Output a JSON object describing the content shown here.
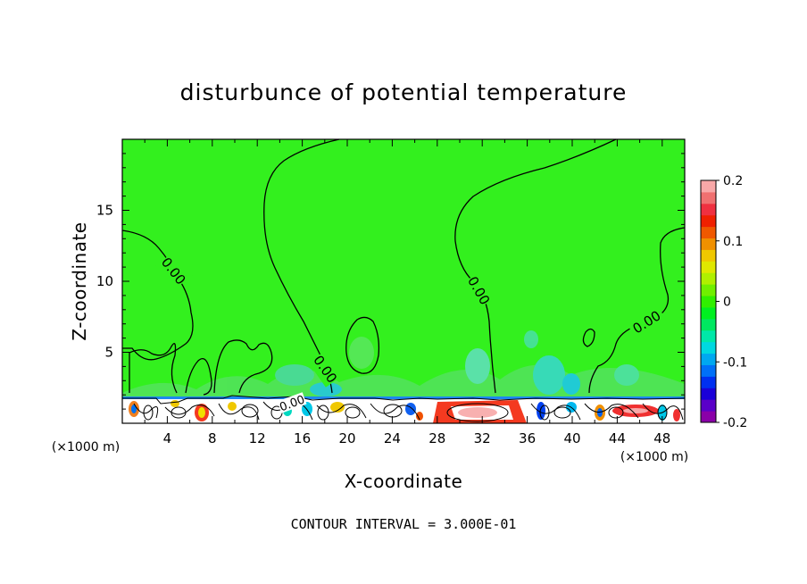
{
  "chart_data": {
    "type": "heatmap",
    "title": "disturbunce of potential temperature",
    "xlabel": "X-coordinate",
    "ylabel": "Z-coordinate",
    "x_unit": "(×1000 m)",
    "x_unit_right": "(×1000 m)",
    "xlim": [
      0,
      50
    ],
    "ylim": [
      0,
      20
    ],
    "x_ticks": [
      4,
      8,
      12,
      16,
      20,
      24,
      28,
      32,
      36,
      40,
      44,
      48
    ],
    "y_ticks": [
      5,
      10,
      15
    ],
    "contour_labels": [
      "0.00",
      "0.00",
      "0.00",
      "0.00",
      "0.00"
    ],
    "footer": "CONTOUR INTERVAL = 3.000E-01",
    "colorbar": {
      "min": -0.2,
      "max": 0.2,
      "tick_labels": [
        "0.2",
        "0.1",
        "0",
        "-0.1",
        "-0.2"
      ],
      "tick_values": [
        0.2,
        0.1,
        0,
        -0.1,
        -0.2
      ],
      "colors": [
        "#8a00a8",
        "#5a00c8",
        "#1a00d8",
        "#0030f0",
        "#0070f8",
        "#00a8f0",
        "#00d8e0",
        "#00e8a8",
        "#00e860",
        "#00f020",
        "#30f000",
        "#70f000",
        "#b0f000",
        "#e0e800",
        "#f0c800",
        "#f09000",
        "#f05800",
        "#f02000",
        "#f03040",
        "#f07070",
        "#f8a8a8"
      ]
    },
    "background_value": 0.02
  },
  "colors": {
    "field": "#33f01e",
    "contour": "#000000"
  }
}
